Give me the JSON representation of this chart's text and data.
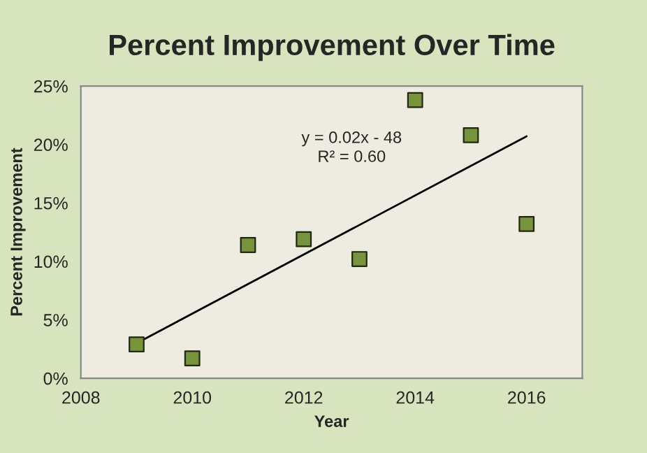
{
  "chart_data": {
    "type": "scatter",
    "title": "Percent Improvement Over Time",
    "xlabel": "Year",
    "ylabel": "Percent Improvement",
    "series": [
      {
        "color": "#77933c",
        "x": [
          2009,
          2010,
          2011,
          2012,
          2013,
          2014,
          2015,
          2016
        ],
        "values": [
          2.9,
          1.7,
          11.4,
          11.9,
          10.2,
          23.8,
          20.8,
          13.2
        ],
        "marker": "square"
      },
      {
        "type": "line",
        "color": "#000000",
        "x": [
          2009,
          2016
        ],
        "values": [
          3.0,
          20.7
        ],
        "marker": "none",
        "line_style": "solid"
      }
    ],
    "annotations": [
      "y = 0.02x - 48",
      "R² = 0.60"
    ],
    "xlim": [
      2008,
      2017
    ],
    "xticks": [
      2008,
      2010,
      2012,
      2014,
      2016
    ],
    "ylim": [
      0,
      25
    ],
    "yticks": [
      {
        "value": 0,
        "label": "0%"
      },
      {
        "value": 5,
        "label": "5%"
      },
      {
        "value": 10,
        "label": "10%"
      },
      {
        "value": 15,
        "label": "15%"
      },
      {
        "value": 20,
        "label": "20%"
      },
      {
        "value": 25,
        "label": "25%"
      }
    ],
    "grid": false
  }
}
